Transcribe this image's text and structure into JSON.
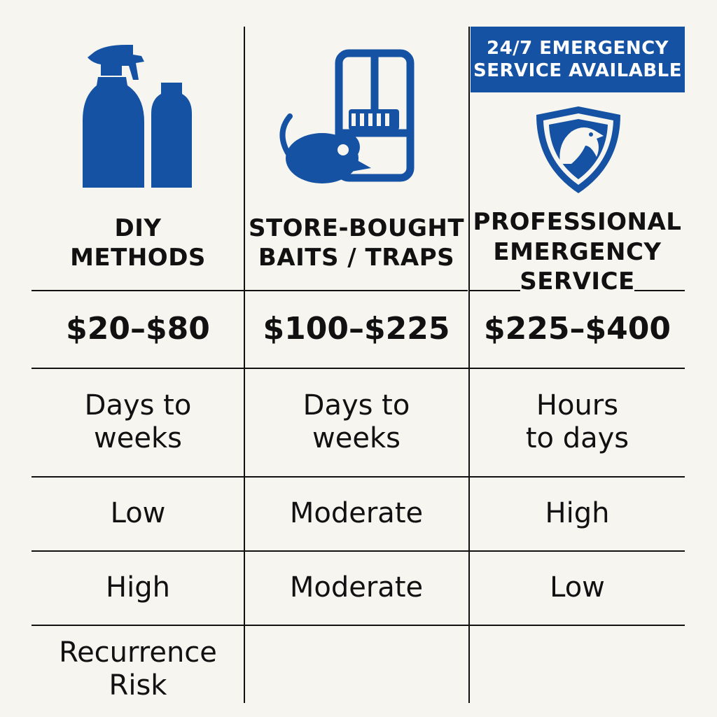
{
  "badge": {
    "line1": "24/7 EMERGENCY",
    "line2": "SERVICE AVAILABLE"
  },
  "columns": [
    {
      "icon": "spray-bottle-icon",
      "title_line1": "DIY",
      "title_line2": "METHODS",
      "title_line3": ""
    },
    {
      "icon": "mouse-trap-icon",
      "title_line1": "STORE-BOUGHT",
      "title_line2": "BAITS / TRAPS",
      "title_line3": ""
    },
    {
      "icon": "eagle-shield-icon",
      "title_line1": "PROFESSIONAL",
      "title_line2": "EMERGENCY",
      "title_line3": "SERVICE"
    }
  ],
  "rows": [
    {
      "cells": [
        "$20–$80",
        "$100–$225",
        "$225–$400"
      ]
    },
    {
      "cells": [
        [
          "Days to",
          "weeks"
        ],
        [
          "Days to",
          "weeks"
        ],
        [
          "Hours",
          "to days"
        ]
      ]
    },
    {
      "cells": [
        "Low",
        "Moderate",
        "High"
      ]
    },
    {
      "cells": [
        "High",
        "Moderate",
        "Low"
      ]
    }
  ],
  "footer_label": {
    "line1": "Recurrence",
    "line2": "Risk"
  },
  "colors": {
    "accent": "#1552a3",
    "text": "#111111",
    "background": "#f7f5f0"
  }
}
